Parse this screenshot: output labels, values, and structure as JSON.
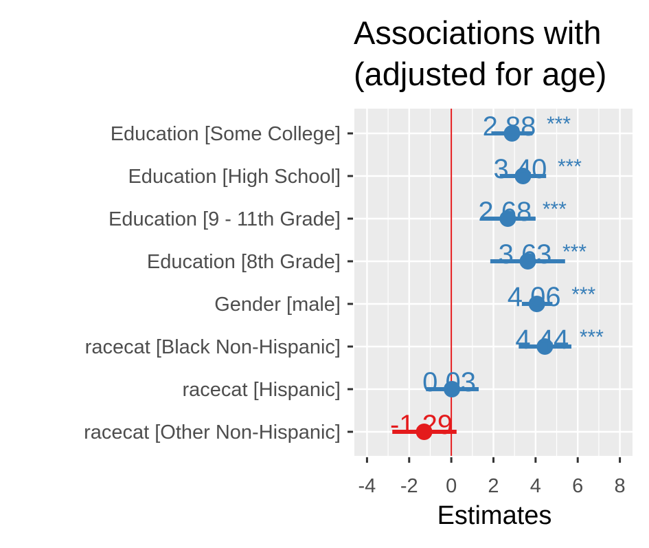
{
  "title_lines": [
    "Associations with",
    "(adjusted for age)"
  ],
  "colors": {
    "positive": "#377eb8",
    "negative": "#e41a1c",
    "panel": "#ebebeb",
    "grid": "#ffffff",
    "refline": "#e41a1c"
  },
  "chart_data": {
    "type": "forest",
    "title": "Associations with (adjusted for age)",
    "xlabel": "Estimates",
    "xlim": [
      -4.6,
      8.6
    ],
    "xticks": [
      -4,
      -2,
      0,
      2,
      4,
      6,
      8
    ],
    "xtick_labels": [
      "-4",
      "-2",
      "0",
      "2",
      "4",
      "6",
      "8"
    ],
    "reference_line": 0,
    "grid": true,
    "terms": [
      {
        "label": "Education [Some College]",
        "estimate": 2.88,
        "ci_low": 1.9,
        "ci_high": 3.85,
        "estimate_label": "2.88",
        "stars": "***"
      },
      {
        "label": "Education [High School]",
        "estimate": 3.4,
        "ci_low": 2.3,
        "ci_high": 4.5,
        "estimate_label": "3.40",
        "stars": "***"
      },
      {
        "label": "Education [9 - 11th Grade]",
        "estimate": 2.68,
        "ci_low": 1.4,
        "ci_high": 4.0,
        "estimate_label": "2.68",
        "stars": "***"
      },
      {
        "label": "Education [8th Grade]",
        "estimate": 3.63,
        "ci_low": 1.85,
        "ci_high": 5.4,
        "estimate_label": "3.63",
        "stars": "***"
      },
      {
        "label": "Gender [male]",
        "estimate": 4.06,
        "ci_low": 3.35,
        "ci_high": 4.8,
        "estimate_label": "4.06",
        "stars": "***"
      },
      {
        "label": "racecat [Black Non-Hispanic]",
        "estimate": 4.44,
        "ci_low": 3.2,
        "ci_high": 5.7,
        "estimate_label": "4.44",
        "stars": "***"
      },
      {
        "label": "racecat [Hispanic]",
        "estimate": 0.03,
        "ci_low": -1.2,
        "ci_high": 1.3,
        "estimate_label": "0.03",
        "stars": ""
      },
      {
        "label": "racecat [Other Non-Hispanic]",
        "estimate": -1.29,
        "ci_low": -2.8,
        "ci_high": 0.25,
        "estimate_label": "-1.29",
        "stars": ""
      }
    ]
  }
}
